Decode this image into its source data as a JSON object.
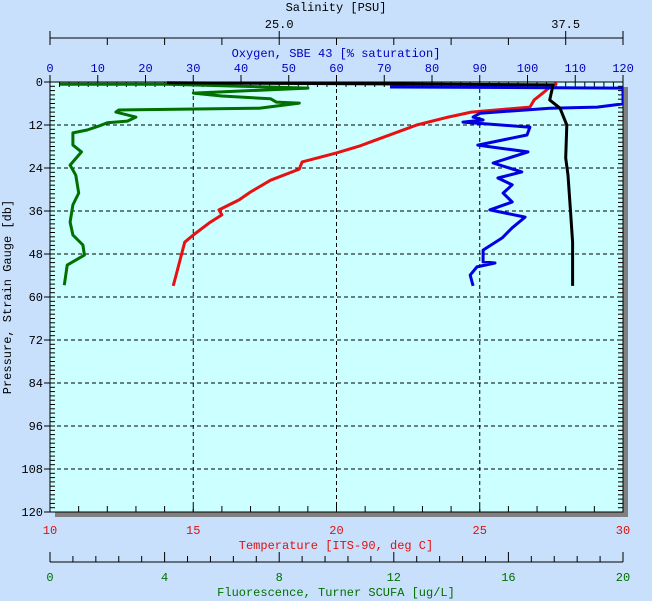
{
  "chart_data": {
    "type": "line",
    "grid": true,
    "colors": {
      "background": "#c8e0fc",
      "plot": "#ccffff",
      "temperature": "#e81010",
      "oxygen": "#0000e0",
      "fluorescence": "#007000",
      "salinity": "#000000",
      "axis": "#000000"
    },
    "y_axis": {
      "label": "Pressure, Strain Gauge [db]",
      "range": [
        0,
        120
      ],
      "inverted": true,
      "ticks": [
        0,
        12,
        24,
        36,
        48,
        60,
        72,
        84,
        96,
        108,
        120
      ]
    },
    "axes": {
      "salinity": {
        "label": "Salinity [PSU]",
        "range": [
          15,
          40
        ],
        "tick_labels": [
          "25.0",
          "37.5"
        ],
        "tick_values": [
          25,
          37.5
        ],
        "minor_step": 2.5,
        "position": "top"
      },
      "oxygen": {
        "label": "Oxygen, SBE 43 [% saturation]",
        "range": [
          0,
          120
        ],
        "ticks": [
          0,
          10,
          20,
          30,
          40,
          50,
          60,
          70,
          80,
          90,
          100,
          110,
          120
        ],
        "position": "top"
      },
      "temperature": {
        "label": "Temperature [ITS-90, deg C]",
        "range": [
          10,
          30
        ],
        "ticks": [
          10,
          15,
          20,
          25,
          30
        ],
        "position": "bottom"
      },
      "fluorescence": {
        "label": "Fluorescence, Turner SCUFA [ug/L]",
        "range": [
          0,
          20
        ],
        "ticks": [
          0,
          4,
          8,
          12,
          16,
          20
        ],
        "position": "bottom"
      }
    },
    "series": [
      {
        "axis": "fluorescence",
        "points": [
          [
            0.35,
            0.6
          ],
          [
            4.1,
            0.6
          ],
          [
            9.0,
            1.7
          ],
          [
            5.0,
            3.1
          ],
          [
            6.0,
            3.9
          ],
          [
            7.7,
            4.7
          ],
          [
            7.9,
            5.6
          ],
          [
            8.7,
            5.9
          ],
          [
            7.3,
            7.3
          ],
          [
            2.4,
            7.8
          ],
          [
            2.3,
            8.4
          ],
          [
            3.0,
            9.8
          ],
          [
            2.7,
            10.9
          ],
          [
            2.0,
            11.4
          ],
          [
            1.7,
            12.3
          ],
          [
            1.3,
            13.4
          ],
          [
            0.8,
            14.2
          ],
          [
            0.8,
            17.6
          ],
          [
            1.1,
            19.5
          ],
          [
            0.7,
            23.2
          ],
          [
            0.9,
            26.0
          ],
          [
            1.0,
            31.0
          ],
          [
            0.8,
            34.3
          ],
          [
            0.7,
            39.1
          ],
          [
            0.8,
            42.7
          ],
          [
            1.15,
            45.5
          ],
          [
            1.2,
            48.3
          ],
          [
            0.6,
            51.1
          ],
          [
            0.5,
            56.7
          ]
        ]
      },
      {
        "axis": "temperature",
        "points": [
          [
            27.7,
            0.3
          ],
          [
            27.45,
            1.4
          ],
          [
            27.2,
            3.1
          ],
          [
            26.9,
            5.0
          ],
          [
            26.75,
            7.0
          ],
          [
            24.7,
            8.4
          ],
          [
            23.9,
            9.8
          ],
          [
            22.8,
            12.0
          ],
          [
            21.2,
            16.7
          ],
          [
            20.8,
            17.9
          ],
          [
            20.0,
            19.8
          ],
          [
            18.8,
            22.3
          ],
          [
            18.7,
            24.3
          ],
          [
            17.7,
            27.4
          ],
          [
            17.0,
            30.7
          ],
          [
            16.6,
            32.9
          ],
          [
            15.9,
            35.7
          ],
          [
            16.0,
            37.1
          ],
          [
            15.6,
            39.1
          ],
          [
            15.0,
            42.7
          ],
          [
            14.7,
            44.7
          ],
          [
            14.4,
            53.9
          ],
          [
            14.3,
            56.9
          ]
        ]
      },
      {
        "axis": "oxygen",
        "points": [
          [
            71.2,
            1.4
          ],
          [
            120,
            1.7
          ],
          [
            120,
            6.1
          ],
          [
            114.6,
            7.0
          ],
          [
            104.7,
            7.3
          ],
          [
            90.1,
            8.7
          ],
          [
            88.6,
            9.8
          ],
          [
            90.7,
            10.6
          ],
          [
            86.5,
            11.2
          ],
          [
            100.5,
            12.6
          ],
          [
            99.9,
            14.8
          ],
          [
            89.6,
            17.6
          ],
          [
            100.1,
            19.5
          ],
          [
            92.8,
            22.6
          ],
          [
            98.8,
            25.1
          ],
          [
            93.8,
            26.8
          ],
          [
            96.8,
            28.7
          ],
          [
            94.9,
            31.0
          ],
          [
            96.8,
            33.5
          ],
          [
            92.1,
            35.7
          ],
          [
            99.5,
            37.7
          ],
          [
            96.8,
            40.7
          ],
          [
            94.7,
            43.5
          ],
          [
            90.7,
            46.9
          ],
          [
            90.7,
            50.2
          ],
          [
            93.2,
            50.5
          ],
          [
            89.4,
            51.6
          ],
          [
            88.0,
            53.9
          ],
          [
            88.6,
            56.9
          ]
        ]
      },
      {
        "axis": "salinity",
        "points": [
          [
            20.1,
            0.2
          ],
          [
            36.95,
            0.8
          ],
          [
            36.8,
            5.0
          ],
          [
            37.25,
            7.3
          ],
          [
            37.55,
            12.0
          ],
          [
            37.5,
            21.2
          ],
          [
            37.6,
            26.0
          ],
          [
            37.7,
            35.2
          ],
          [
            37.8,
            44.7
          ],
          [
            37.8,
            56.9
          ]
        ]
      }
    ]
  }
}
